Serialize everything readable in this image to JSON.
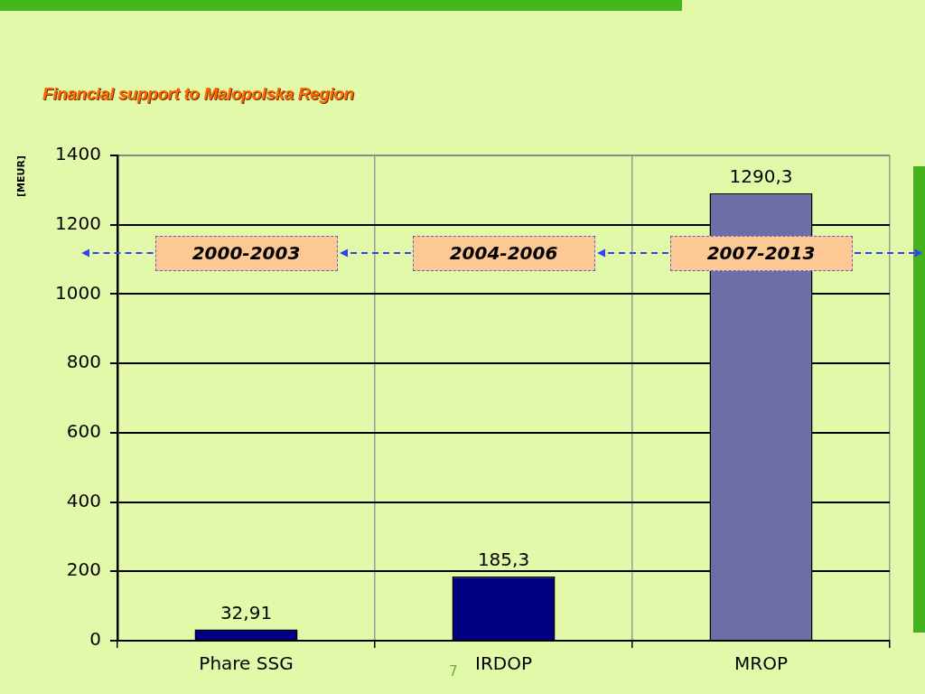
{
  "chart_data": {
    "type": "bar",
    "title": "Financial support to Malopolska Region",
    "ylabel": "[MEUR]",
    "categories": [
      "Phare SSG",
      "IRDOP",
      "MROP"
    ],
    "values": [
      32.91,
      185.3,
      1290.3
    ],
    "colors": [
      "#000080",
      "#000080",
      "#6c6fa6"
    ],
    "value_labels": [
      "32,91",
      "185,3",
      "1290,3"
    ],
    "ylim": [
      0,
      1400
    ],
    "yticks": [
      0,
      200,
      400,
      600,
      800,
      1000,
      1200,
      1400
    ],
    "grid": true,
    "annotations": [
      "2000-2003",
      "2004-2006",
      "2007-2013",
      "7"
    ]
  }
}
